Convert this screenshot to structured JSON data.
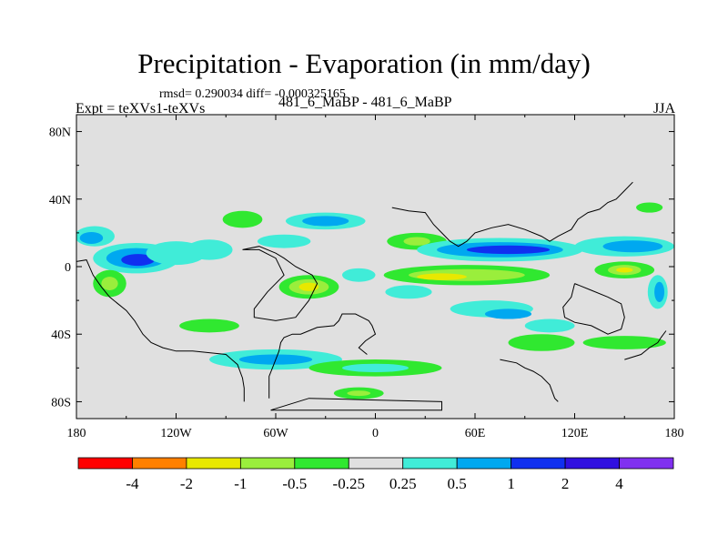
{
  "chart_data": {
    "type": "heatmap",
    "title": "Precipitation - Evaporation (in mm/day)",
    "stats_text": "rmsd= 0.290034 diff= -0.000325165",
    "left_label": "Expt = teXVs1-teXVs",
    "center_label": "481_6_MaBP - 481_6_MaBP",
    "right_label": "JJA",
    "x_ticks": [
      {
        "value": -180,
        "label": "180"
      },
      {
        "value": -120,
        "label": "120W"
      },
      {
        "value": -60,
        "label": "60W"
      },
      {
        "value": 0,
        "label": "0"
      },
      {
        "value": 60,
        "label": "60E"
      },
      {
        "value": 120,
        "label": "120E"
      },
      {
        "value": 180,
        "label": "180"
      }
    ],
    "y_ticks": [
      {
        "value": 80,
        "label": "80N"
      },
      {
        "value": 40,
        "label": "40N"
      },
      {
        "value": 0,
        "label": "0"
      },
      {
        "value": -40,
        "label": "40S"
      },
      {
        "value": -80,
        "label": "80S"
      }
    ],
    "xlim": [
      -180,
      180
    ],
    "ylim": [
      -90,
      90
    ],
    "colorbar": {
      "colors": [
        "#ff0000",
        "#ff8000",
        "#e8e800",
        "#9aee3c",
        "#30e830",
        "#e0e0e0",
        "#40ecd8",
        "#00a8f0",
        "#1030f0",
        "#3010e0",
        "#8030f0"
      ],
      "labels": [
        "-4",
        "-2",
        "-1",
        "-0.5",
        "-0.25",
        "0.25",
        "0.5",
        "1",
        "2",
        "4"
      ]
    },
    "features": [
      {
        "lon": -169,
        "lat": 18,
        "rx": 12,
        "ry": 6,
        "color": "#40ecd8"
      },
      {
        "lon": -171,
        "lat": 17,
        "rx": 7,
        "ry": 3.5,
        "color": "#00a8f0"
      },
      {
        "lon": -144,
        "lat": 5,
        "rx": 26,
        "ry": 9,
        "color": "#40ecd8"
      },
      {
        "lon": -144,
        "lat": 5,
        "rx": 18,
        "ry": 6,
        "color": "#00a8f0"
      },
      {
        "lon": -143,
        "lat": 4,
        "rx": 10,
        "ry": 3.5,
        "color": "#1030f0"
      },
      {
        "lon": -120,
        "lat": 8,
        "rx": 18,
        "ry": 7,
        "color": "#40ecd8"
      },
      {
        "lon": -100,
        "lat": 10,
        "rx": 14,
        "ry": 6,
        "color": "#40ecd8"
      },
      {
        "lon": -160,
        "lat": -10,
        "rx": 10,
        "ry": 8,
        "color": "#30e830"
      },
      {
        "lon": -160,
        "lat": -10,
        "rx": 5,
        "ry": 4,
        "color": "#9aee3c"
      },
      {
        "lon": -100,
        "lat": -35,
        "rx": 18,
        "ry": 4,
        "color": "#30e830"
      },
      {
        "lon": -80,
        "lat": 28,
        "rx": 12,
        "ry": 5,
        "color": "#30e830"
      },
      {
        "lon": -30,
        "lat": 27,
        "rx": 24,
        "ry": 5,
        "color": "#40ecd8"
      },
      {
        "lon": -30,
        "lat": 27,
        "rx": 14,
        "ry": 3,
        "color": "#00a8f0"
      },
      {
        "lon": -55,
        "lat": 15,
        "rx": 16,
        "ry": 4,
        "color": "#40ecd8"
      },
      {
        "lon": -40,
        "lat": -12,
        "rx": 18,
        "ry": 7,
        "color": "#30e830"
      },
      {
        "lon": -40,
        "lat": -12,
        "rx": 12,
        "ry": 4.5,
        "color": "#9aee3c"
      },
      {
        "lon": -40,
        "lat": -12,
        "rx": 6,
        "ry": 2.5,
        "color": "#e8e800"
      },
      {
        "lon": -10,
        "lat": -5,
        "rx": 10,
        "ry": 4,
        "color": "#40ecd8"
      },
      {
        "lon": 25,
        "lat": 15,
        "rx": 18,
        "ry": 5,
        "color": "#30e830"
      },
      {
        "lon": 25,
        "lat": 15,
        "rx": 8,
        "ry": 2.5,
        "color": "#9aee3c"
      },
      {
        "lon": 20,
        "lat": -15,
        "rx": 14,
        "ry": 4,
        "color": "#40ecd8"
      },
      {
        "lon": 75,
        "lat": 10,
        "rx": 50,
        "ry": 7,
        "color": "#40ecd8"
      },
      {
        "lon": 75,
        "lat": 10,
        "rx": 38,
        "ry": 4.5,
        "color": "#00a8f0"
      },
      {
        "lon": 80,
        "lat": 10,
        "rx": 25,
        "ry": 2.5,
        "color": "#1030f0"
      },
      {
        "lon": 55,
        "lat": -5,
        "rx": 50,
        "ry": 6,
        "color": "#30e830"
      },
      {
        "lon": 55,
        "lat": -5,
        "rx": 35,
        "ry": 3.5,
        "color": "#9aee3c"
      },
      {
        "lon": 40,
        "lat": -6,
        "rx": 15,
        "ry": 2,
        "color": "#e8e800"
      },
      {
        "lon": 70,
        "lat": -25,
        "rx": 25,
        "ry": 5,
        "color": "#40ecd8"
      },
      {
        "lon": 80,
        "lat": -28,
        "rx": 14,
        "ry": 3,
        "color": "#00a8f0"
      },
      {
        "lon": 150,
        "lat": 12,
        "rx": 30,
        "ry": 6,
        "color": "#40ecd8"
      },
      {
        "lon": 155,
        "lat": 12,
        "rx": 18,
        "ry": 3.5,
        "color": "#00a8f0"
      },
      {
        "lon": 150,
        "lat": -2,
        "rx": 18,
        "ry": 5,
        "color": "#30e830"
      },
      {
        "lon": 150,
        "lat": -2,
        "rx": 10,
        "ry": 3,
        "color": "#9aee3c"
      },
      {
        "lon": 150,
        "lat": -2,
        "rx": 5,
        "ry": 1.5,
        "color": "#e8e800"
      },
      {
        "lon": 170,
        "lat": -15,
        "rx": 6,
        "ry": 10,
        "color": "#40ecd8"
      },
      {
        "lon": 171,
        "lat": -15,
        "rx": 3,
        "ry": 6,
        "color": "#00a8f0"
      },
      {
        "lon": 165,
        "lat": 35,
        "rx": 8,
        "ry": 3,
        "color": "#30e830"
      },
      {
        "lon": -60,
        "lat": -55,
        "rx": 40,
        "ry": 6,
        "color": "#40ecd8"
      },
      {
        "lon": -60,
        "lat": -55,
        "rx": 22,
        "ry": 3,
        "color": "#00a8f0"
      },
      {
        "lon": 0,
        "lat": -60,
        "rx": 40,
        "ry": 5,
        "color": "#30e830"
      },
      {
        "lon": 0,
        "lat": -60,
        "rx": 20,
        "ry": 2.5,
        "color": "#40ecd8"
      },
      {
        "lon": -10,
        "lat": -75,
        "rx": 15,
        "ry": 3.5,
        "color": "#30e830"
      },
      {
        "lon": -10,
        "lat": -75,
        "rx": 7,
        "ry": 1.6,
        "color": "#9aee3c"
      },
      {
        "lon": 100,
        "lat": -45,
        "rx": 20,
        "ry": 5,
        "color": "#30e830"
      },
      {
        "lon": 105,
        "lat": -35,
        "rx": 15,
        "ry": 4,
        "color": "#40ecd8"
      },
      {
        "lon": 150,
        "lat": -45,
        "rx": 25,
        "ry": 4,
        "color": "#30e830"
      }
    ],
    "coastlines": [
      [
        [
          -180,
          3
        ],
        [
          -174,
          4
        ],
        [
          -170,
          -5
        ],
        [
          -165,
          -12
        ],
        [
          -160,
          -18
        ],
        [
          -155,
          -22
        ],
        [
          -150,
          -26
        ],
        [
          -145,
          -32
        ],
        [
          -140,
          -40
        ],
        [
          -135,
          -45
        ],
        [
          -128,
          -48
        ],
        [
          -120,
          -50
        ],
        [
          -110,
          -50
        ],
        [
          -100,
          -51
        ],
        [
          -90,
          -52
        ],
        [
          -83,
          -58
        ],
        [
          -80,
          -66
        ],
        [
          -79,
          -72
        ],
        [
          -79,
          -80
        ]
      ],
      [
        [
          -64,
          -78
        ],
        [
          -64,
          -70
        ],
        [
          -64,
          -65
        ],
        [
          -62,
          -60
        ],
        [
          -60,
          -55
        ],
        [
          -58,
          -50
        ],
        [
          -57,
          -45
        ],
        [
          -55,
          -42
        ],
        [
          -50,
          -40
        ],
        [
          -45,
          -40
        ],
        [
          -40,
          -38
        ],
        [
          -35,
          -36
        ],
        [
          -25,
          -35
        ],
        [
          -22,
          -32
        ],
        [
          -20,
          -28
        ],
        [
          -12,
          -28
        ],
        [
          -8,
          -30
        ],
        [
          -4,
          -32
        ],
        [
          -2,
          -35
        ],
        [
          0,
          -40
        ],
        [
          -6,
          -44
        ],
        [
          -10,
          -48
        ],
        [
          -5,
          -52
        ]
      ],
      [
        [
          -63,
          -85
        ],
        [
          -30,
          -85
        ],
        [
          10,
          -85
        ],
        [
          40,
          -85
        ],
        [
          40,
          -80
        ],
        [
          0,
          -79
        ],
        [
          -40,
          -78
        ],
        [
          -63,
          -85
        ]
      ],
      [
        [
          -80,
          10
        ],
        [
          -70,
          10
        ],
        [
          -60,
          5
        ],
        [
          -55,
          -5
        ],
        [
          -65,
          -15
        ],
        [
          -73,
          -25
        ],
        [
          -73,
          -30
        ],
        [
          -60,
          -32
        ],
        [
          -48,
          -30
        ],
        [
          -40,
          -20
        ],
        [
          -35,
          -10
        ],
        [
          -38,
          -5
        ],
        [
          -48,
          0
        ],
        [
          -55,
          5
        ],
        [
          -60,
          8
        ],
        [
          -70,
          12
        ],
        [
          -80,
          10
        ]
      ],
      [
        [
          10,
          35
        ],
        [
          20,
          33
        ],
        [
          30,
          32
        ],
        [
          35,
          25
        ],
        [
          40,
          20
        ],
        [
          45,
          15
        ],
        [
          50,
          12
        ],
        [
          55,
          15
        ],
        [
          60,
          20
        ],
        [
          70,
          23
        ],
        [
          80,
          25
        ],
        [
          90,
          22
        ],
        [
          100,
          18
        ],
        [
          105,
          15
        ],
        [
          110,
          18
        ],
        [
          118,
          22
        ],
        [
          122,
          28
        ],
        [
          128,
          32
        ],
        [
          135,
          34
        ],
        [
          140,
          38
        ],
        [
          145,
          40
        ],
        [
          150,
          45
        ],
        [
          155,
          50
        ]
      ],
      [
        [
          120,
          -10
        ],
        [
          130,
          -14
        ],
        [
          140,
          -18
        ],
        [
          148,
          -22
        ],
        [
          150,
          -30
        ],
        [
          148,
          -37
        ],
        [
          140,
          -40
        ],
        [
          130,
          -35
        ],
        [
          120,
          -33
        ],
        [
          114,
          -30
        ],
        [
          113,
          -24
        ],
        [
          118,
          -18
        ],
        [
          120,
          -10
        ]
      ],
      [
        [
          75,
          -55
        ],
        [
          85,
          -57
        ],
        [
          90,
          -60
        ],
        [
          95,
          -62
        ],
        [
          100,
          -65
        ],
        [
          105,
          -70
        ],
        [
          108,
          -78
        ],
        [
          110,
          -80
        ]
      ],
      [
        [
          150,
          -55
        ],
        [
          160,
          -52
        ],
        [
          165,
          -48
        ],
        [
          170,
          -45
        ],
        [
          172,
          -42
        ],
        [
          175,
          -38
        ]
      ]
    ]
  }
}
